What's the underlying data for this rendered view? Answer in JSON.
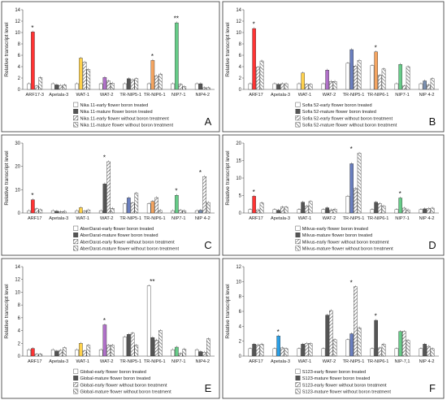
{
  "chart_data": [
    {
      "type": "bar",
      "panel": "A",
      "ylabel": "Relative transcript level",
      "ylim": [
        0,
        14
      ],
      "yticks": [
        0,
        2,
        4,
        6,
        8,
        10,
        12,
        14
      ],
      "categories": [
        "ARF17-3",
        "Apetala-3",
        "WAT-1",
        "WAT-2",
        "TR-NIP5-1",
        "TR-NIP6-1",
        "NIP7-1",
        "NIP4-2"
      ],
      "highlight_colors": [
        "#ff3333",
        null,
        "#ffd24d",
        "#b070c8",
        null,
        "#f4a460",
        "#66cc88",
        null
      ],
      "stars": [
        "*",
        "",
        "",
        "",
        "",
        "*",
        "**",
        ""
      ],
      "series": [
        {
          "name": "Nika 11-early flower boron treated",
          "values": [
            1.0,
            1.0,
            1.0,
            1.0,
            1.0,
            1.0,
            1.0,
            1.0
          ]
        },
        {
          "name": "Nika 11-mature flower boron treated",
          "values": [
            10.1,
            0.8,
            5.5,
            2.1,
            1.9,
            5.1,
            11.7,
            1.0
          ]
        },
        {
          "name": "Nika 11-early flower without boron treatment",
          "values": [
            0.6,
            0.7,
            4.8,
            1.5,
            1.7,
            2.4,
            0.9,
            0.3
          ]
        },
        {
          "name": "Nika 11-mature flower without boron treatment",
          "values": [
            2.1,
            0.8,
            3.5,
            1.1,
            1.9,
            2.7,
            0.5,
            0.3
          ]
        }
      ]
    },
    {
      "type": "bar",
      "panel": "B",
      "ylabel": "Relative transcript level",
      "ylim": [
        0,
        14
      ],
      "yticks": [
        0,
        2,
        4,
        6,
        8,
        10,
        12,
        14
      ],
      "categories": [
        "ARF17",
        "Apetala-3",
        "WAT-1",
        "WAT-2",
        "TR-NIP5-1",
        "TR-NIP6-1",
        "NIP7-1",
        "NIP 4-2"
      ],
      "highlight_colors": [
        "#ff3333",
        null,
        "#ffd24d",
        "#b070c8",
        "#6a7fc0",
        "#f4a460",
        "#66cc88",
        "#7a8fb0"
      ],
      "stars": [
        "*",
        "",
        "",
        "",
        "",
        "*",
        "",
        ""
      ],
      "series": [
        {
          "name": "Sofia 52-early flower boron treated",
          "values": [
            1.0,
            1.0,
            1.0,
            1.0,
            4.6,
            4.2,
            1.0,
            1.0
          ]
        },
        {
          "name": "Sofia 52-mature flower boron treated",
          "values": [
            10.7,
            0.9,
            2.9,
            3.4,
            7.0,
            6.6,
            4.4,
            1.5
          ]
        },
        {
          "name": "Sofia 52-early flower without boron treatment",
          "values": [
            3.9,
            1.0,
            0.9,
            1.4,
            4.1,
            2.5,
            0.6,
            0.8
          ]
        },
        {
          "name": "Sofia 52-mature flower without boron treatment",
          "values": [
            5.0,
            1.0,
            0.9,
            1.4,
            5.1,
            3.6,
            4.0,
            1.9
          ]
        }
      ]
    },
    {
      "type": "bar",
      "panel": "C",
      "ylabel": "Relative transcript level",
      "ylim": [
        0,
        30
      ],
      "yticks": [
        0,
        10,
        20,
        30
      ],
      "categories": [
        "ARF17",
        "Apetala-3",
        "WAT-1",
        "WAT-2",
        "TR-NIP5-1",
        "TR-NIP6-1",
        "NIP7-1",
        "NIP 4-2"
      ],
      "highlight_colors": [
        "#ff3333",
        null,
        "#ffd24d",
        "#555555",
        "#6a7fc0",
        "#f4a460",
        "#66cc88",
        "#7a8fb0"
      ],
      "stars": [
        "*",
        "",
        "",
        "*",
        "",
        "",
        "*",
        "*"
      ],
      "series": [
        {
          "name": "AberDarat-early flower boron treated",
          "values": [
            1.0,
            1.0,
            1.0,
            1.0,
            4.0,
            4.0,
            1.0,
            1.0
          ]
        },
        {
          "name": "AberDarat-mature flower boron treated",
          "values": [
            5.7,
            0.8,
            2.3,
            12.5,
            6.5,
            5.0,
            7.6,
            1.2
          ]
        },
        {
          "name": "AberDarat-early flower without boron treatment",
          "values": [
            1.8,
            0.6,
            0.8,
            22.0,
            4.3,
            6.6,
            1.2,
            15.6
          ]
        },
        {
          "name": "AberDarat-mature flower without boron treatment",
          "values": [
            1.4,
            0.7,
            1.3,
            2.0,
            8.5,
            1.1,
            1.0,
            4.5
          ]
        }
      ]
    },
    {
      "type": "bar",
      "panel": "D",
      "ylabel": "Relative transcript level",
      "ylim": [
        0,
        20
      ],
      "yticks": [
        0,
        5,
        10,
        15,
        20
      ],
      "categories": [
        "ARF17",
        "Apetala-3",
        "WAT-1",
        "WAT-2",
        "TR-NIP5-1",
        "TR-NIP6-1",
        "NIP7-1",
        "NIP 4-2"
      ],
      "highlight_colors": [
        "#ff3333",
        null,
        null,
        null,
        "#6a7fc0",
        null,
        "#66cc88",
        null
      ],
      "stars": [
        "*",
        "",
        "",
        "",
        "*",
        "",
        "*",
        ""
      ],
      "series": [
        {
          "name": "Milvus-early flower boron treated",
          "values": [
            1.0,
            1.0,
            1.0,
            1.0,
            4.8,
            1.0,
            1.0,
            1.0
          ]
        },
        {
          "name": "Milvus-mature flower boron treated",
          "values": [
            4.8,
            0.8,
            3.1,
            1.5,
            14.1,
            3.1,
            4.3,
            1.2
          ]
        },
        {
          "name": "Milvus-early flower without boron treatment",
          "values": [
            0.9,
            1.7,
            2.0,
            0.9,
            7.0,
            2.7,
            1.4,
            1.3
          ]
        },
        {
          "name": "Milvus-mature flower without boron treatment",
          "values": [
            2.9,
            1.7,
            3.3,
            1.1,
            17.1,
            2.0,
            0.9,
            1.4
          ]
        }
      ]
    },
    {
      "type": "bar",
      "panel": "E",
      "ylabel": "Relative transcript level",
      "ylim": [
        0,
        14
      ],
      "yticks": [
        0,
        2,
        4,
        6,
        8,
        10,
        12,
        14
      ],
      "categories": [
        "ARF17",
        "Apetala-3",
        "WAT-1",
        "WAT-2",
        "TR-NIP5-1",
        "TR-NIP6-1",
        "NIP7-1",
        "NIP4-2"
      ],
      "highlight_colors": [
        "#ff3333",
        null,
        "#ffd24d",
        "#b070c8",
        null,
        null,
        "#66cc88",
        null
      ],
      "stars": [
        "",
        "",
        "",
        "*",
        "",
        "**",
        "",
        ""
      ],
      "series": [
        {
          "name": "Global-early flower boron treated",
          "values": [
            1.0,
            1.0,
            1.0,
            1.0,
            3.0,
            11.0,
            1.0,
            1.0
          ]
        },
        {
          "name": "Global-mature flower boron treated",
          "values": [
            1.2,
            0.8,
            2.0,
            4.9,
            3.4,
            2.9,
            1.4,
            0.7
          ]
        },
        {
          "name": "Global-early flower without boron treatment",
          "values": [
            0.3,
            0.9,
            0.8,
            1.7,
            3.6,
            2.5,
            0.4,
            0.6
          ]
        },
        {
          "name": "Global-mature flower without boron treatment",
          "values": [
            0.3,
            1.3,
            1.7,
            1.7,
            1.7,
            4.0,
            1.1,
            2.7
          ]
        }
      ]
    },
    {
      "type": "bar",
      "panel": "F",
      "ylabel": "Relative transcript level",
      "ylim": [
        0,
        12
      ],
      "yticks": [
        0,
        2,
        4,
        6,
        8,
        10,
        12
      ],
      "categories": [
        "ARF17",
        "Apetala-3",
        "WAT-1",
        "WAT-2",
        "TR-NIP5-1",
        "TR-NIP6-1",
        "NIP-7,1",
        "NIP 4-2"
      ],
      "highlight_colors": [
        null,
        "#2aa0e8",
        null,
        null,
        "#6a7fc0",
        null,
        "#66cc88",
        null
      ],
      "stars": [
        "",
        "*",
        "",
        "",
        "*",
        "*",
        "",
        ""
      ],
      "series": [
        {
          "name": "S123-early flower boron treated",
          "values": [
            1.0,
            1.0,
            1.0,
            1.0,
            2.2,
            1.0,
            1.0,
            1.0
          ]
        },
        {
          "name": "S123-mature flower boron treated",
          "values": [
            1.6,
            2.7,
            1.6,
            5.5,
            3.0,
            4.8,
            3.3,
            1.6
          ]
        },
        {
          "name": "S123-early flower without boron treatment",
          "values": [
            1.5,
            1.1,
            1.7,
            6.1,
            9.3,
            1.1,
            3.3,
            1.3
          ]
        },
        {
          "name": "S123-mature flower without boron treatment",
          "values": [
            1.6,
            1.0,
            1.7,
            2.2,
            3.8,
            1.6,
            2.1,
            1.0
          ]
        }
      ]
    }
  ]
}
